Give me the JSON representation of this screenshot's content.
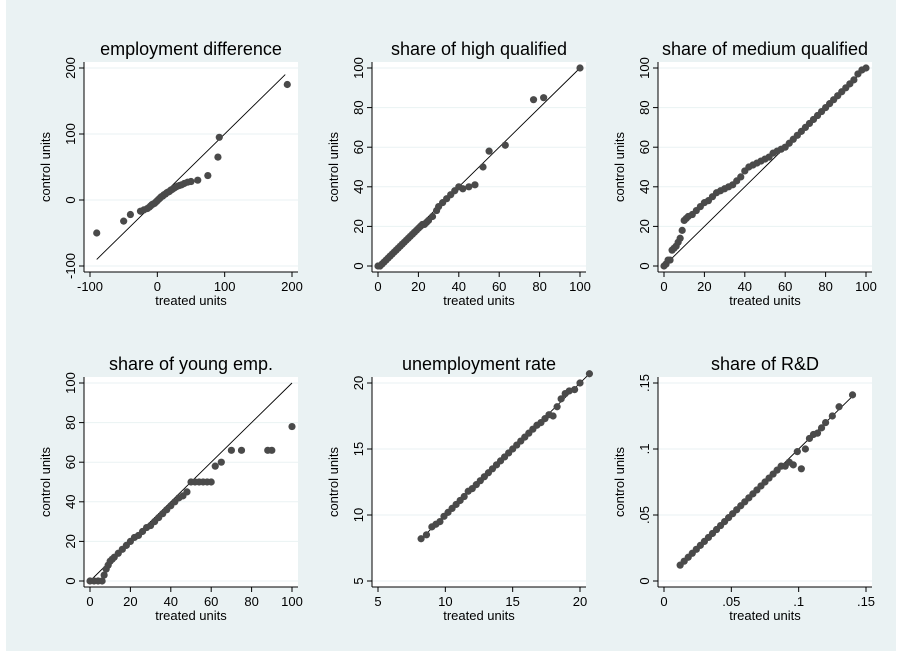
{
  "colors": {
    "background": "#eaf2f3",
    "plot_area": "#ffffff",
    "points": "#4a4a4a",
    "reference_line": "#000000"
  },
  "chart_data": [
    {
      "type": "scatter",
      "title": "employment difference",
      "xlabel": "treated units",
      "ylabel": "control units",
      "xlim": [
        -100,
        200
      ],
      "ylim": [
        -100,
        200
      ],
      "xticks": [
        -100,
        0,
        100,
        200
      ],
      "xtick_labels": [
        "-100",
        "0",
        "100",
        "200"
      ],
      "yticks": [
        -100,
        0,
        100,
        200
      ],
      "ytick_labels": [
        "-100",
        "0",
        "100",
        "200"
      ],
      "grid": true,
      "reference_line": [
        [
          -90,
          -90
        ],
        [
          190,
          190
        ]
      ],
      "x": [
        -90,
        -50,
        -40,
        -25,
        -20,
        -15,
        -12,
        -10,
        -8,
        -6,
        -4,
        -2,
        0,
        2,
        4,
        6,
        8,
        10,
        12,
        14,
        16,
        18,
        20,
        22,
        25,
        28,
        30,
        33,
        36,
        40,
        45,
        50,
        60,
        75,
        90,
        92,
        193
      ],
      "y": [
        -50,
        -32,
        -22,
        -17,
        -15,
        -13,
        -11,
        -9,
        -7,
        -6,
        -5,
        -3,
        -1,
        1,
        3,
        5,
        6,
        8,
        9,
        11,
        12,
        13,
        15,
        16,
        18,
        20,
        21,
        22,
        23,
        25,
        27,
        28,
        30,
        37,
        65,
        95,
        175
      ]
    },
    {
      "type": "scatter",
      "title": "share of high qualified",
      "xlabel": "treated units",
      "ylabel": "control units",
      "xlim": [
        0,
        100
      ],
      "ylim": [
        0,
        100
      ],
      "xticks": [
        0,
        20,
        40,
        60,
        80,
        100
      ],
      "xtick_labels": [
        "0",
        "20",
        "40",
        "60",
        "80",
        "100"
      ],
      "yticks": [
        0,
        20,
        40,
        60,
        80,
        100
      ],
      "ytick_labels": [
        "0",
        "20",
        "40",
        "60",
        "80",
        "100"
      ],
      "grid": true,
      "reference_line": [
        [
          0,
          0
        ],
        [
          100,
          100
        ]
      ],
      "x": [
        0,
        1,
        2,
        3,
        4,
        5,
        6,
        7,
        8,
        9,
        10,
        11,
        12,
        13,
        14,
        15,
        16,
        17,
        18,
        19,
        20,
        21,
        22,
        23,
        24,
        25,
        27,
        29,
        30,
        32,
        34,
        36,
        38,
        40,
        42,
        45,
        48,
        52,
        55,
        63,
        77,
        82,
        100
      ],
      "y": [
        0,
        0,
        1,
        2,
        3,
        4,
        5,
        6,
        7,
        8,
        9,
        10,
        11,
        12,
        13,
        14,
        15,
        16,
        17,
        18,
        19,
        20,
        21,
        21,
        22,
        23,
        25,
        28,
        30,
        32,
        34,
        36,
        38,
        40,
        39,
        40,
        41,
        50,
        58,
        61,
        84,
        85,
        100
      ]
    },
    {
      "type": "scatter",
      "title": "share of medium qualified",
      "xlabel": "treated units",
      "ylabel": "control units",
      "xlim": [
        0,
        100
      ],
      "ylim": [
        0,
        100
      ],
      "xticks": [
        0,
        20,
        40,
        60,
        80,
        100
      ],
      "xtick_labels": [
        "0",
        "20",
        "40",
        "60",
        "80",
        "100"
      ],
      "yticks": [
        0,
        20,
        40,
        60,
        80,
        100
      ],
      "ytick_labels": [
        "0",
        "20",
        "40",
        "60",
        "80",
        "100"
      ],
      "grid": true,
      "reference_line": [
        [
          0,
          0
        ],
        [
          100,
          100
        ]
      ],
      "x": [
        0,
        1,
        2,
        3,
        4,
        5,
        6,
        7,
        8,
        9,
        10,
        11,
        12,
        14,
        16,
        18,
        20,
        22,
        24,
        26,
        28,
        30,
        32,
        34,
        36,
        38,
        40,
        42,
        44,
        46,
        48,
        50,
        52,
        54,
        56,
        58,
        60,
        62,
        64,
        66,
        68,
        70,
        72,
        74,
        76,
        78,
        80,
        82,
        84,
        86,
        88,
        90,
        92,
        94,
        96,
        98,
        100
      ],
      "y": [
        0,
        1,
        3,
        3,
        8,
        9,
        10,
        12,
        14,
        18,
        23,
        24,
        25,
        26,
        28,
        30,
        32,
        33,
        35,
        37,
        38,
        39,
        40,
        41,
        43,
        45,
        48,
        50,
        51,
        52,
        53,
        54,
        55,
        57,
        58,
        59,
        60,
        62,
        64,
        66,
        68,
        70,
        72,
        74,
        76,
        78,
        80,
        82,
        84,
        86,
        88,
        90,
        92,
        94,
        97,
        99,
        100
      ]
    },
    {
      "type": "scatter",
      "title": "share of young emp.",
      "xlabel": "treated units",
      "ylabel": "control units",
      "xlim": [
        0,
        100
      ],
      "ylim": [
        0,
        100
      ],
      "xticks": [
        0,
        20,
        40,
        60,
        80,
        100
      ],
      "xtick_labels": [
        "0",
        "20",
        "40",
        "60",
        "80",
        "100"
      ],
      "yticks": [
        0,
        20,
        40,
        60,
        80,
        100
      ],
      "ytick_labels": [
        "0",
        "20",
        "40",
        "60",
        "80",
        "100"
      ],
      "grid": true,
      "reference_line": [
        [
          0,
          0
        ],
        [
          100,
          100
        ]
      ],
      "x": [
        0,
        2,
        4,
        6,
        7,
        8,
        9,
        10,
        11,
        12,
        14,
        16,
        18,
        20,
        22,
        24,
        26,
        28,
        30,
        32,
        34,
        36,
        38,
        40,
        42,
        44,
        46,
        48,
        50,
        52,
        54,
        56,
        58,
        60,
        62,
        65,
        70,
        75,
        88,
        90,
        100
      ],
      "y": [
        0,
        0,
        0,
        0,
        3,
        6,
        8,
        10,
        11,
        12,
        14,
        16,
        18,
        20,
        22,
        23,
        25,
        27,
        28,
        30,
        32,
        34,
        36,
        38,
        40,
        42,
        43,
        45,
        50,
        50,
        50,
        50,
        50,
        50,
        58,
        60,
        66,
        66,
        66,
        66,
        78
      ]
    },
    {
      "type": "scatter",
      "title": "unemployment rate",
      "xlabel": "treated units",
      "ylabel": "control units",
      "xlim": [
        5,
        20
      ],
      "ylim": [
        5,
        20
      ],
      "xticks": [
        5,
        10,
        15,
        20
      ],
      "xtick_labels": [
        "5",
        "10",
        "15",
        "20"
      ],
      "yticks": [
        5,
        10,
        15,
        20
      ],
      "ytick_labels": [
        "5",
        "10",
        "15",
        "20"
      ],
      "grid": true,
      "reference_line": [
        [
          8.2,
          8.2
        ],
        [
          20.7,
          20.7
        ]
      ],
      "x": [
        8.2,
        8.6,
        9.0,
        9.3,
        9.6,
        9.9,
        10.2,
        10.5,
        10.8,
        11.1,
        11.4,
        11.7,
        12.0,
        12.3,
        12.6,
        12.9,
        13.2,
        13.5,
        13.8,
        14.1,
        14.4,
        14.7,
        15.0,
        15.3,
        15.6,
        15.9,
        16.2,
        16.5,
        16.8,
        17.1,
        17.4,
        17.7,
        18.0,
        18.3,
        18.6,
        18.9,
        19.2,
        19.6,
        20.0,
        20.7
      ],
      "y": [
        8.2,
        8.5,
        9.1,
        9.3,
        9.5,
        9.9,
        10.2,
        10.5,
        10.8,
        11.1,
        11.4,
        11.8,
        12.0,
        12.3,
        12.6,
        12.9,
        13.2,
        13.5,
        13.8,
        14.1,
        14.4,
        14.7,
        15.0,
        15.3,
        15.6,
        15.9,
        16.2,
        16.5,
        16.8,
        17.0,
        17.3,
        17.6,
        17.5,
        18.2,
        18.8,
        19.2,
        19.4,
        19.5,
        20.0,
        20.7
      ]
    },
    {
      "type": "scatter",
      "title": "share of R&D",
      "xlabel": "treated units",
      "ylabel": "control units",
      "xlim": [
        0,
        0.15
      ],
      "ylim": [
        0,
        0.15
      ],
      "xticks": [
        0,
        0.05,
        0.1,
        0.15
      ],
      "xtick_labels": [
        "0",
        ".05",
        ".1",
        ".15"
      ],
      "yticks": [
        0,
        0.05,
        0.1,
        0.15
      ],
      "ytick_labels": [
        "0",
        ".05",
        ".1",
        ".15"
      ],
      "grid": true,
      "reference_line": [
        [
          0.012,
          0.012
        ],
        [
          0.14,
          0.14
        ]
      ],
      "x": [
        0.012,
        0.015,
        0.018,
        0.021,
        0.024,
        0.027,
        0.03,
        0.033,
        0.036,
        0.039,
        0.042,
        0.045,
        0.048,
        0.051,
        0.054,
        0.057,
        0.06,
        0.063,
        0.066,
        0.069,
        0.072,
        0.075,
        0.078,
        0.081,
        0.084,
        0.087,
        0.09,
        0.093,
        0.096,
        0.099,
        0.102,
        0.105,
        0.108,
        0.111,
        0.114,
        0.117,
        0.12,
        0.125,
        0.13,
        0.14
      ],
      "y": [
        0.012,
        0.015,
        0.018,
        0.021,
        0.024,
        0.027,
        0.03,
        0.033,
        0.036,
        0.039,
        0.042,
        0.045,
        0.048,
        0.051,
        0.054,
        0.057,
        0.06,
        0.063,
        0.066,
        0.069,
        0.072,
        0.075,
        0.078,
        0.081,
        0.084,
        0.087,
        0.087,
        0.09,
        0.088,
        0.098,
        0.085,
        0.1,
        0.108,
        0.111,
        0.112,
        0.116,
        0.12,
        0.125,
        0.132,
        0.141
      ]
    }
  ]
}
